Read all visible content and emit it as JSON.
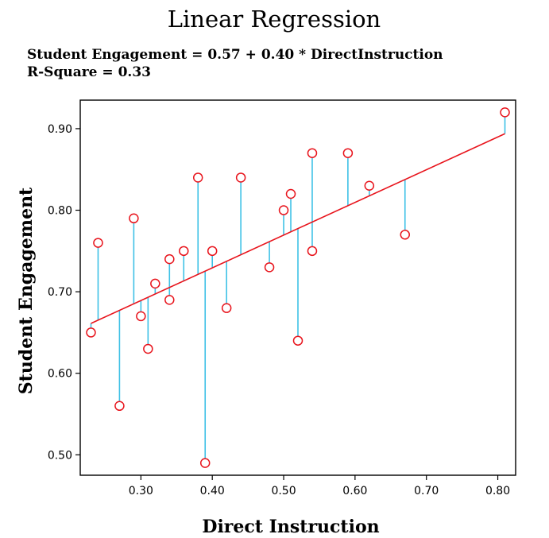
{
  "chart_data": {
    "type": "scatter",
    "title": "Linear Regression",
    "subtitle": [
      "Student Engagement = 0.57 + 0.40 * DirectInstruction",
      "R-Square = 0.33"
    ],
    "xlabel": "Direct Instruction",
    "ylabel": "Student Engagement",
    "xlim": [
      0.215,
      0.825
    ],
    "ylim": [
      0.475,
      0.935
    ],
    "x_ticks": [
      "0.30",
      "0.40",
      "0.50",
      "0.60",
      "0.70",
      "0.80"
    ],
    "x_tick_values": [
      0.3,
      0.4,
      0.5,
      0.6,
      0.7,
      0.8
    ],
    "y_ticks": [
      "0.50",
      "0.60",
      "0.70",
      "0.80",
      "0.90"
    ],
    "y_tick_values": [
      0.5,
      0.6,
      0.7,
      0.8,
      0.9
    ],
    "regression": {
      "intercept": 0.5689,
      "slope": 0.4011,
      "x_range": [
        0.23,
        0.81
      ]
    },
    "points": [
      {
        "x": 0.23,
        "y": 0.65
      },
      {
        "x": 0.24,
        "y": 0.76
      },
      {
        "x": 0.27,
        "y": 0.56
      },
      {
        "x": 0.29,
        "y": 0.79
      },
      {
        "x": 0.3,
        "y": 0.67
      },
      {
        "x": 0.31,
        "y": 0.63
      },
      {
        "x": 0.32,
        "y": 0.71
      },
      {
        "x": 0.34,
        "y": 0.74
      },
      {
        "x": 0.34,
        "y": 0.69
      },
      {
        "x": 0.36,
        "y": 0.75
      },
      {
        "x": 0.38,
        "y": 0.84
      },
      {
        "x": 0.39,
        "y": 0.49
      },
      {
        "x": 0.4,
        "y": 0.75
      },
      {
        "x": 0.42,
        "y": 0.68
      },
      {
        "x": 0.44,
        "y": 0.84
      },
      {
        "x": 0.48,
        "y": 0.73
      },
      {
        "x": 0.5,
        "y": 0.8
      },
      {
        "x": 0.51,
        "y": 0.82
      },
      {
        "x": 0.52,
        "y": 0.64
      },
      {
        "x": 0.54,
        "y": 0.87
      },
      {
        "x": 0.54,
        "y": 0.75
      },
      {
        "x": 0.59,
        "y": 0.87
      },
      {
        "x": 0.62,
        "y": 0.83
      },
      {
        "x": 0.67,
        "y": 0.77
      },
      {
        "x": 0.81,
        "y": 0.92
      }
    ],
    "grid": false,
    "colors": {
      "points": "#e8141c",
      "regression_line": "#e8141c",
      "residuals": "#3ec1e6",
      "frame": "#000000"
    }
  }
}
